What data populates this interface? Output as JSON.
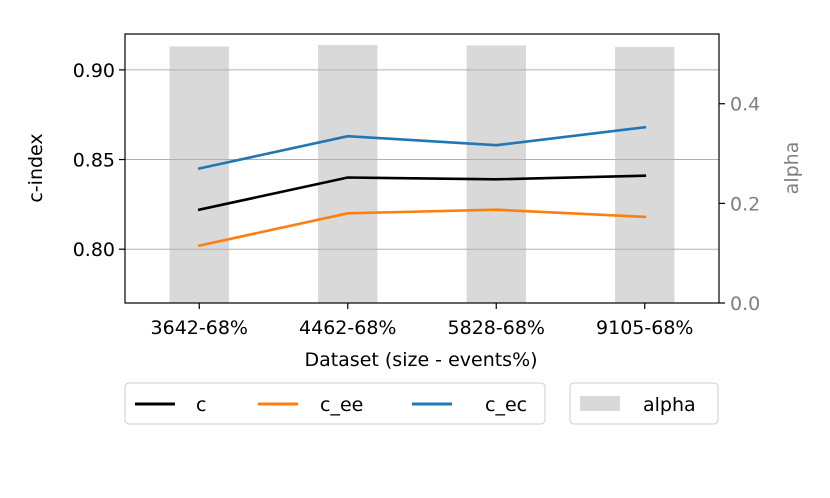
{
  "chart_data": {
    "type": "line",
    "xlabel": "Dataset (size - events%)",
    "ylabel": "c-index",
    "y2label": "alpha",
    "categories": [
      "3642-68%",
      "4462-68%",
      "5828-68%",
      "9105-68%"
    ],
    "ylim": [
      0.77,
      0.92
    ],
    "y2lim": [
      0.0,
      0.54
    ],
    "yticks": [
      0.8,
      0.85,
      0.9
    ],
    "yticklabels": [
      "0.80",
      "0.85",
      "0.90"
    ],
    "y2ticks": [
      0.0,
      0.2,
      0.4
    ],
    "y2ticklabels": [
      "0.0",
      "0.2",
      "0.4"
    ],
    "grid": "horizontal",
    "series": [
      {
        "name": "c",
        "color": "#000000",
        "values": [
          0.822,
          0.84,
          0.839,
          0.841
        ]
      },
      {
        "name": "c_ee",
        "color": "#ff7f0e",
        "values": [
          0.802,
          0.82,
          0.822,
          0.818
        ]
      },
      {
        "name": "c_ec",
        "color": "#1f77b4",
        "values": [
          0.845,
          0.863,
          0.858,
          0.868
        ]
      }
    ],
    "bars": {
      "name": "alpha",
      "color": "#d9d9d9",
      "values": [
        0.515,
        0.518,
        0.517,
        0.514
      ]
    },
    "legend_position": "bottom"
  }
}
